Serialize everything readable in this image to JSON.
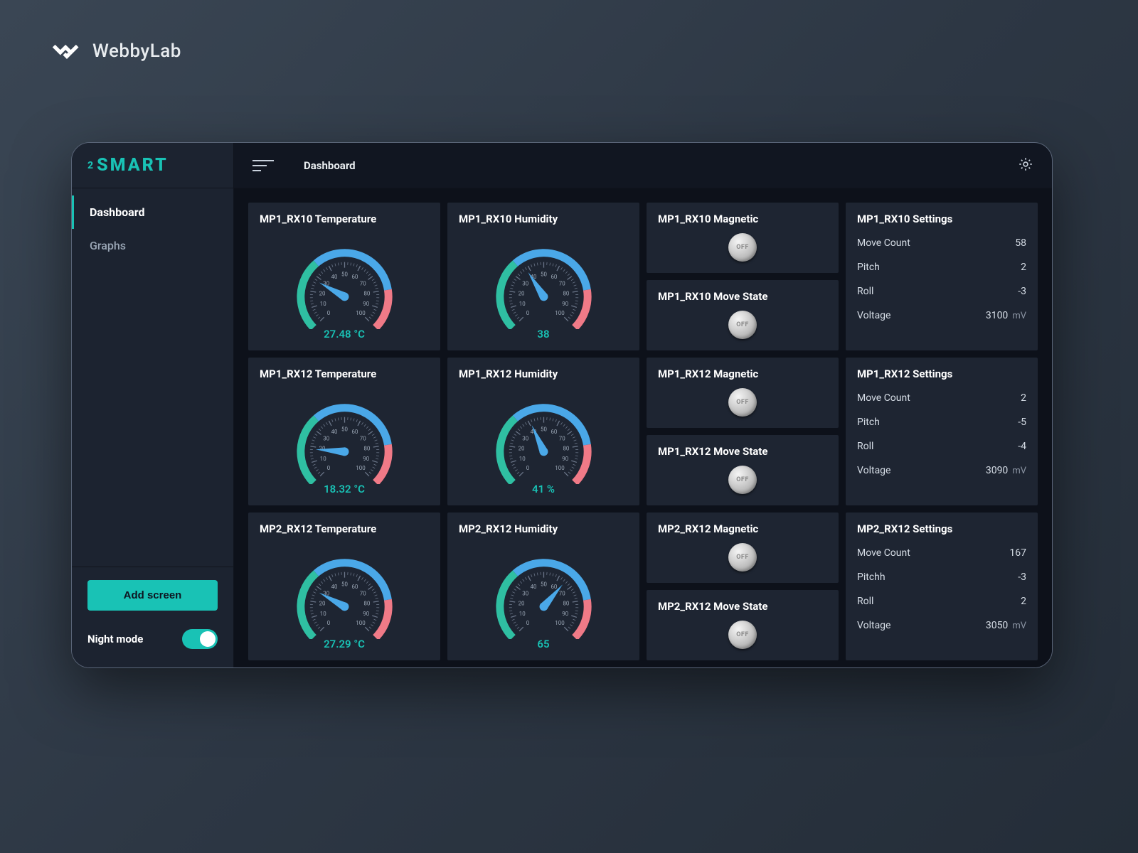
{
  "brand": "WebbyLab",
  "logo": "SMART",
  "logo_prefix": "2",
  "nav": {
    "items": [
      "Dashboard",
      "Graphs"
    ],
    "active": 0
  },
  "add_screen_label": "Add screen",
  "night_mode_label": "Night mode",
  "night_mode_on": true,
  "breadcrumb": "Dashboard",
  "colors": {
    "accent": "#19c2b5",
    "gauge_green": "#2fbfa2",
    "gauge_blue": "#4aa8e8",
    "gauge_red": "#f07a87",
    "gauge_track": "#3a4556",
    "card_bg": "#1e2532",
    "bg": "#0d111a"
  },
  "gauge_style": {
    "min": 0,
    "max": 100,
    "start_angle_deg": 225,
    "end_angle_deg": -45,
    "ticks": [
      0,
      10,
      20,
      30,
      40,
      50,
      60,
      70,
      80,
      90,
      100
    ],
    "zone_green_end": 35,
    "zone_blue_end": 80,
    "arc_width": 11,
    "radius": 62
  },
  "rows": [
    {
      "temp": {
        "title": "MP1_RX10 Temperature",
        "value": 27.48,
        "display": "27.48 °C"
      },
      "hum": {
        "title": "MP1_RX10 Humidity",
        "value": 38,
        "display": "38"
      },
      "mag": {
        "title": "MP1_RX10 Magnetic",
        "state": "OFF"
      },
      "move": {
        "title": "MP1_RX10 Move State",
        "state": "OFF"
      },
      "set": {
        "title": "MP1_RX10 Settings",
        "lines": [
          {
            "k": "Move Count",
            "v": "58",
            "u": ""
          },
          {
            "k": "Pitch",
            "v": "2",
            "u": ""
          },
          {
            "k": "Roll",
            "v": "-3",
            "u": ""
          },
          {
            "k": "Voltage",
            "v": "3100",
            "u": "mV"
          }
        ]
      }
    },
    {
      "temp": {
        "title": "MP1_RX12 Temperature",
        "value": 18.32,
        "display": "18.32 °C"
      },
      "hum": {
        "title": "MP1_RX12 Humidity",
        "value": 41,
        "display": "41 %"
      },
      "mag": {
        "title": "MP1_RX12 Magnetic",
        "state": "OFF"
      },
      "move": {
        "title": "MP1_RX12 Move State",
        "state": "OFF"
      },
      "set": {
        "title": "MP1_RX12 Settings",
        "lines": [
          {
            "k": "Move Count",
            "v": "2",
            "u": ""
          },
          {
            "k": "Pitch",
            "v": "-5",
            "u": ""
          },
          {
            "k": "Roll",
            "v": "-4",
            "u": ""
          },
          {
            "k": "Voltage",
            "v": "3090",
            "u": "mV"
          }
        ]
      }
    },
    {
      "temp": {
        "title": "MP2_RX12 Temperature",
        "value": 27.29,
        "display": "27.29 °C"
      },
      "hum": {
        "title": "MP2_RX12 Humidity",
        "value": 65,
        "display": "65"
      },
      "mag": {
        "title": "MP2_RX12 Magnetic",
        "state": "OFF"
      },
      "move": {
        "title": "MP2_RX12 Move State",
        "state": "OFF"
      },
      "set": {
        "title": "MP2_RX12 Settings",
        "lines": [
          {
            "k": "Move Count",
            "v": "167",
            "u": ""
          },
          {
            "k": "Pitchh",
            "v": "-3",
            "u": ""
          },
          {
            "k": "Roll",
            "v": "2",
            "u": ""
          },
          {
            "k": "Voltage",
            "v": "3050",
            "u": "mV"
          }
        ]
      }
    }
  ]
}
